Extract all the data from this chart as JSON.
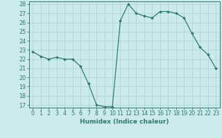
{
  "x": [
    0,
    1,
    2,
    3,
    4,
    5,
    6,
    7,
    8,
    9,
    10,
    11,
    12,
    13,
    14,
    15,
    16,
    17,
    18,
    19,
    20,
    21,
    22,
    23
  ],
  "y": [
    22.8,
    22.3,
    22.0,
    22.2,
    22.0,
    22.0,
    21.2,
    19.3,
    17.0,
    16.8,
    16.8,
    26.2,
    28.0,
    27.0,
    26.7,
    26.5,
    27.2,
    27.2,
    27.0,
    26.5,
    24.8,
    23.3,
    22.5,
    21.0
  ],
  "line_color": "#2d7a6e",
  "marker": "D",
  "marker_size": 2.0,
  "bg_color": "#cdeaea",
  "grid_color": "#aacfcf",
  "xlabel": "Humidex (Indice chaleur)",
  "xlim": [
    -0.5,
    23.5
  ],
  "ylim": [
    16.7,
    28.3
  ],
  "yticks": [
    17,
    18,
    19,
    20,
    21,
    22,
    23,
    24,
    25,
    26,
    27,
    28
  ],
  "xticks": [
    0,
    1,
    2,
    3,
    4,
    5,
    6,
    7,
    8,
    9,
    10,
    11,
    12,
    13,
    14,
    15,
    16,
    17,
    18,
    19,
    20,
    21,
    22,
    23
  ],
  "xlabel_fontsize": 6.5,
  "tick_fontsize": 5.8,
  "line_width": 0.9,
  "spine_color": "#2d7a6e",
  "tick_color": "#2d7a6e",
  "label_color": "#2d7a6e"
}
